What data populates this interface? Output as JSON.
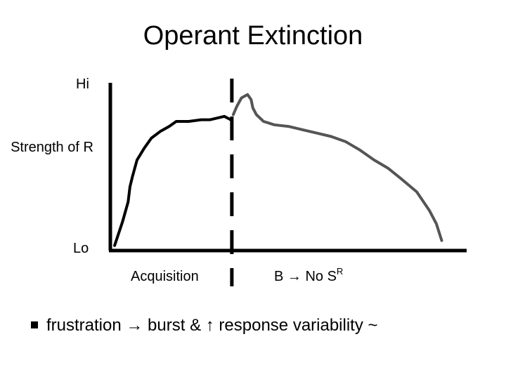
{
  "slide": {
    "title": "Operant Extinction",
    "bullet_text": "frustration → burst & ↑ response variability ~"
  },
  "chart_data": {
    "type": "line",
    "title": "Operant Extinction",
    "ylabel": "Strength of R",
    "yticks": [
      "Hi",
      "Lo"
    ],
    "ylim": [
      0,
      1
    ],
    "xlim": [
      0,
      1
    ],
    "grid": false,
    "divider": {
      "x": 0.341,
      "style": "dashed"
    },
    "phase_labels": {
      "acquisition": "Acquisition",
      "extinction_main": "B → No S",
      "extinction_sup": "R"
    },
    "series": [
      {
        "phase": "acquisition",
        "color": "#000000",
        "x": [
          0.012,
          0.034,
          0.05,
          0.055,
          0.062,
          0.075,
          0.095,
          0.115,
          0.14,
          0.165,
          0.185,
          0.22,
          0.255,
          0.28,
          0.3,
          0.32,
          0.338
        ],
        "y": [
          0.03,
          0.17,
          0.29,
          0.38,
          0.44,
          0.54,
          0.61,
          0.67,
          0.71,
          0.74,
          0.77,
          0.77,
          0.78,
          0.78,
          0.79,
          0.8,
          0.78
        ]
      },
      {
        "phase": "extinction",
        "color": "#555555",
        "x": [
          0.345,
          0.355,
          0.368,
          0.385,
          0.395,
          0.4,
          0.41,
          0.43,
          0.46,
          0.5,
          0.54,
          0.58,
          0.62,
          0.66,
          0.7,
          0.74,
          0.78,
          0.815,
          0.86,
          0.895,
          0.915,
          0.93
        ],
        "y": [
          0.81,
          0.86,
          0.91,
          0.93,
          0.9,
          0.85,
          0.81,
          0.77,
          0.75,
          0.74,
          0.72,
          0.7,
          0.68,
          0.65,
          0.6,
          0.54,
          0.49,
          0.43,
          0.35,
          0.24,
          0.16,
          0.06
        ]
      }
    ]
  }
}
